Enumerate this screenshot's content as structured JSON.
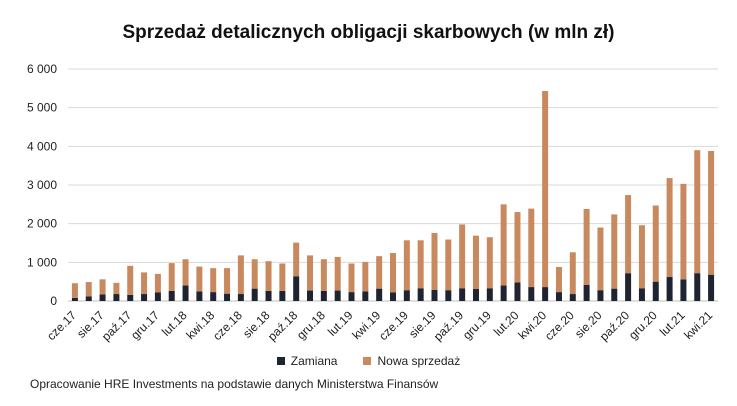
{
  "chart_data": {
    "type": "bar",
    "stacked": true,
    "title": "Sprzedaż detalicznych obligacji skarbowych (w mln zł)",
    "xlabel": "",
    "ylabel": "",
    "ylim": [
      0,
      6000
    ],
    "yticks": [
      0,
      1000,
      2000,
      3000,
      4000,
      5000,
      6000
    ],
    "ytick_labels": [
      "0",
      "1 000",
      "2 000",
      "3 000",
      "4 000",
      "5 000",
      "6 000"
    ],
    "grid": true,
    "legend_position": "bottom",
    "categories": [
      "cze.17",
      "lip.17",
      "sie.17",
      "wrz.17",
      "paź.17",
      "lis.17",
      "gru.17",
      "sty.18",
      "lut.18",
      "mar.18",
      "kwi.18",
      "maj.18",
      "cze.18",
      "lip.18",
      "sie.18",
      "wrz.18",
      "paź.18",
      "lis.18",
      "gru.18",
      "sty.19",
      "lut.19",
      "mar.19",
      "kwi.19",
      "maj.19",
      "cze.19",
      "lip.19",
      "sie.19",
      "wrz.19",
      "paź.19",
      "lis.19",
      "gru.19",
      "sty.20",
      "lut.20",
      "mar.20",
      "kwi.20",
      "maj.20",
      "cze.20",
      "lip.20",
      "sie.20",
      "wrz.20",
      "paź.20",
      "lis.20",
      "gru.20",
      "sty.21",
      "lut.21",
      "mar.21",
      "kwi.21"
    ],
    "xtick_labels": [
      "cze.17",
      "",
      "sie.17",
      "",
      "paź.17",
      "",
      "gru.17",
      "",
      "lut.18",
      "",
      "kwi.18",
      "",
      "cze.18",
      "",
      "sie.18",
      "",
      "paź.18",
      "",
      "gru.18",
      "",
      "lut.19",
      "",
      "kwi.19",
      "",
      "cze.19",
      "",
      "sie.19",
      "",
      "paź.19",
      "",
      "gru.19",
      "",
      "lut.20",
      "",
      "kwi.20",
      "",
      "cze.20",
      "",
      "sie.20",
      "",
      "paź.20",
      "",
      "gru.20",
      "",
      "lut.21",
      "",
      "kwi.21"
    ],
    "series": [
      {
        "name": "Zamiana",
        "color": "#1f2433",
        "values": [
          80,
          120,
          170,
          180,
          160,
          180,
          220,
          260,
          400,
          250,
          230,
          190,
          180,
          320,
          260,
          260,
          640,
          270,
          260,
          270,
          230,
          250,
          320,
          220,
          280,
          330,
          290,
          280,
          330,
          310,
          330,
          400,
          480,
          360,
          360,
          230,
          180,
          420,
          280,
          320,
          720,
          330,
          500,
          620,
          560,
          720,
          680
        ]
      },
      {
        "name": "Nowa sprzedaż",
        "color": "#c8895f",
        "values": [
          380,
          370,
          390,
          290,
          750,
          560,
          480,
          720,
          680,
          640,
          620,
          660,
          1000,
          760,
          770,
          710,
          870,
          910,
          820,
          870,
          740,
          760,
          840,
          1020,
          1290,
          1240,
          1470,
          1310,
          1650,
          1380,
          1320,
          2100,
          1820,
          2030,
          5070,
          650,
          1080,
          1960,
          1620,
          1920,
          2020,
          1630,
          1970,
          2560,
          2470,
          3180,
          3200
        ]
      }
    ],
    "annotations": [
      "Opracowanie HRE Investments na podstawie danych Ministerstwa Finansów"
    ]
  }
}
